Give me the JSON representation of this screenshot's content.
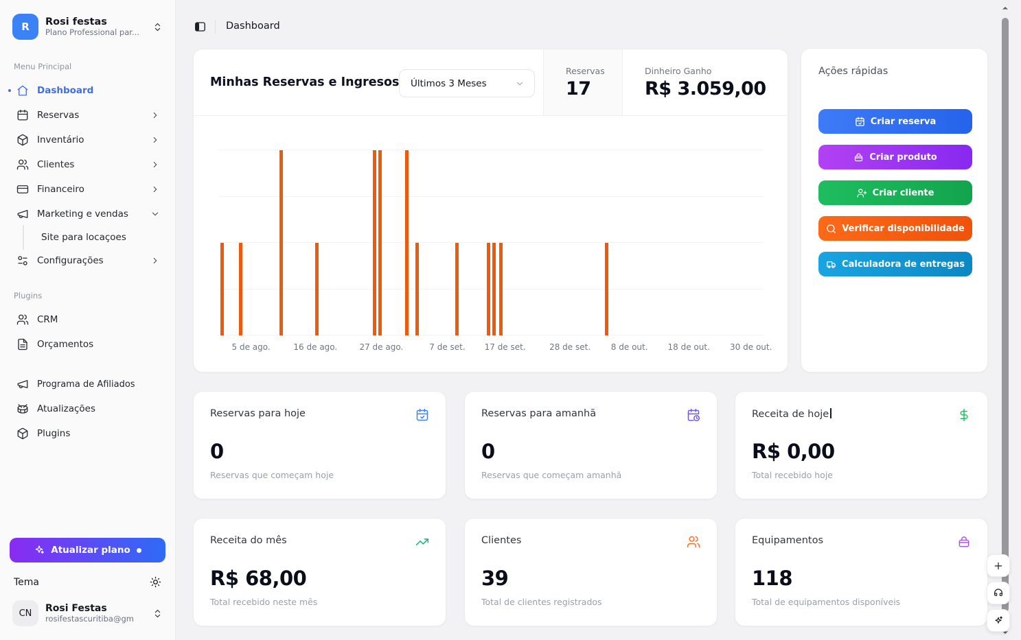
{
  "topbar": {
    "breadcrumb": "Dashboard"
  },
  "sidebar": {
    "workspace": {
      "avatar_initial": "R",
      "name": "Rosi festas",
      "plan": "Plano Professional par..."
    },
    "menu_section_label": "Menu Principal",
    "items": [
      {
        "label": "Dashboard",
        "icon": "home",
        "active": true
      },
      {
        "label": "Reservas",
        "icon": "calendar"
      },
      {
        "label": "Inventário",
        "icon": "package"
      },
      {
        "label": "Clientes",
        "icon": "users"
      },
      {
        "label": "Financeiro",
        "icon": "credit-card"
      },
      {
        "label": "Marketing e vendas",
        "icon": "megaphone",
        "expanded": true
      },
      {
        "label": "Site para locaçoes",
        "sub_item": true
      },
      {
        "label": "Configurações",
        "icon": "sliders"
      }
    ],
    "plugins_section_label": "Plugins",
    "plugin_items": [
      {
        "label": "CRM",
        "icon": "users"
      },
      {
        "label": "Orçamentos",
        "icon": "file-text"
      }
    ],
    "footer_items": [
      {
        "label": "Programa de Afiliados",
        "icon": "megaphone"
      },
      {
        "label": "Atualizações",
        "icon": "drum"
      },
      {
        "label": "Plugins",
        "icon": "package"
      }
    ],
    "upgrade_button_label": "Atualizar plano",
    "theme_label": "Tema",
    "user": {
      "avatar_initials": "CN",
      "name": "Rosi Festas",
      "email": "rosifestascuritiba@gm..."
    }
  },
  "chart_card": {
    "title": "Minhas Reservas e Ingresos",
    "period_selector_value": "Últimos 3 Meses",
    "reservas_stat": {
      "label": "Reservas",
      "value": "17"
    },
    "dinheiro_stat": {
      "label": "Dinheiro Ganho",
      "value": "R$ 3.059,00"
    }
  },
  "chart_data": {
    "type": "bar",
    "title": "Minhas Reservas e Ingresos",
    "period": "Últimos 3 Meses",
    "total_reservas": 17,
    "bar_color": "#ee5a0c",
    "ylim": [
      0,
      2
    ],
    "gridlines": [
      0,
      0.5,
      1,
      1.5,
      2
    ],
    "grid": true,
    "xlabel": "",
    "ylabel": "",
    "ticks": [
      {
        "pos": 0.06,
        "label": "5 de ago."
      },
      {
        "pos": 0.178,
        "label": "16 de ago."
      },
      {
        "pos": 0.299,
        "label": "27 de ago."
      },
      {
        "pos": 0.42,
        "label": "7 de set."
      },
      {
        "pos": 0.526,
        "label": "17 de set."
      },
      {
        "pos": 0.645,
        "label": "28 de set."
      },
      {
        "pos": 0.754,
        "label": "8 de out."
      },
      {
        "pos": 0.863,
        "label": "18 de out."
      },
      {
        "pos": 0.977,
        "label": "30 de out."
      }
    ],
    "bars": [
      {
        "pos": 0.004,
        "value": 1,
        "date_approx": "1 de ago."
      },
      {
        "pos": 0.038,
        "value": 1,
        "date_approx": "4 de ago."
      },
      {
        "pos": 0.112,
        "value": 2,
        "date_approx": "10 de ago."
      },
      {
        "pos": 0.178,
        "value": 1,
        "date_approx": "16 de ago."
      },
      {
        "pos": 0.284,
        "value": 2,
        "date_approx": "26 de ago."
      },
      {
        "pos": 0.294,
        "value": 2,
        "date_approx": "27 de ago."
      },
      {
        "pos": 0.342,
        "value": 2,
        "date_approx": "1 de set."
      },
      {
        "pos": 0.362,
        "value": 1,
        "date_approx": "3 de set."
      },
      {
        "pos": 0.435,
        "value": 1,
        "date_approx": "9 de set."
      },
      {
        "pos": 0.492,
        "value": 1,
        "date_approx": "14 de set."
      },
      {
        "pos": 0.503,
        "value": 1,
        "date_approx": "15 de set."
      },
      {
        "pos": 0.515,
        "value": 1,
        "date_approx": "16 de set."
      },
      {
        "pos": 0.709,
        "value": 1,
        "date_approx": "5 de out."
      }
    ]
  },
  "quick_actions": {
    "title": "Ações rápidas",
    "buttons": [
      {
        "label": "Criar reserva",
        "icon": "calendar-plus",
        "gradient_from": "#3e7bf7",
        "gradient_to": "#2563eb"
      },
      {
        "label": "Criar produto",
        "icon": "basket",
        "gradient_from": "#b341f3",
        "gradient_to": "#8729f0"
      },
      {
        "label": "Criar cliente",
        "icon": "user-plus",
        "gradient_from": "#1fbd5f",
        "gradient_to": "#12a44d"
      },
      {
        "label": "Verificar disponibilidade",
        "icon": "search",
        "gradient_from": "#fb6a18",
        "gradient_to": "#f0520a"
      },
      {
        "label": "Calculadora de entregas",
        "icon": "truck",
        "gradient_from": "#18a5e2",
        "gradient_to": "#0c87c2"
      }
    ]
  },
  "stat_cards": [
    {
      "title": "Reservas para hoje",
      "icon": "calendar-check",
      "icon_color": "#3b82f6",
      "value": "0",
      "subtitle": "Reservas que começam hoje"
    },
    {
      "title": "Reservas para amanhã",
      "icon": "calendar-clock",
      "icon_color": "#6d5be8",
      "value": "0",
      "subtitle": "Reservas que começam amanhã"
    },
    {
      "title": "Receita de hoje",
      "icon": "dollar-sign",
      "icon_color": "#1fc15f",
      "value": "R$ 0,00",
      "subtitle": "Total recebido hoje"
    },
    {
      "title": "Receita do mês",
      "icon": "trending-up",
      "icon_color": "#14b87a",
      "value": "R$ 68,00",
      "subtitle": "Total recebido neste mês"
    },
    {
      "title": "Clientes",
      "icon": "users",
      "icon_color": "#f97028",
      "value": "39",
      "subtitle": "Total de clientes registrados"
    },
    {
      "title": "Equipamentos",
      "icon": "basket",
      "icon_color": "#b350f5",
      "value": "118",
      "subtitle": "Total de equipamentos disponíveis"
    }
  ],
  "colors": {
    "accent_blue": "#3f6fe8",
    "bar_orange": "#ee5a0c",
    "sidebar_bg": "#fafafa",
    "main_bg": "#f2f2f4",
    "upgrade_gradient_from": "#8a2bf2",
    "upgrade_gradient_to": "#2e6bf6"
  }
}
